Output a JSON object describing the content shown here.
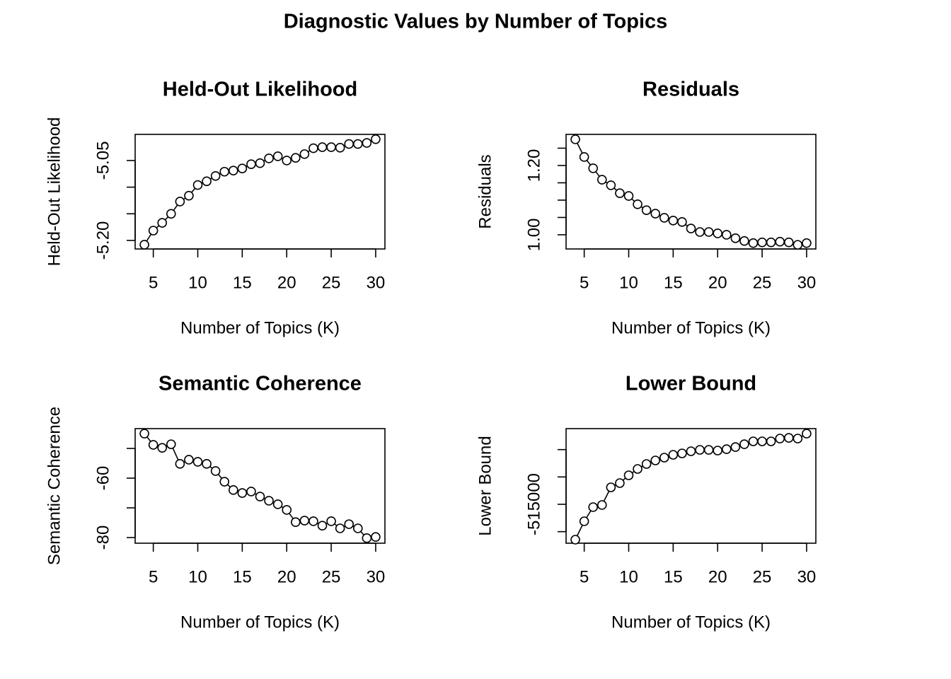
{
  "title": "Diagnostic Values by Number of Topics",
  "chart_data": [
    {
      "type": "line",
      "title": "Held-Out Likelihood",
      "xlabel": "Number of Topics (K)",
      "ylabel": "Held-Out Likelihood",
      "x": [
        4,
        5,
        6,
        7,
        8,
        9,
        10,
        11,
        12,
        13,
        14,
        15,
        16,
        17,
        18,
        19,
        20,
        21,
        22,
        23,
        24,
        25,
        26,
        27,
        28,
        29,
        30
      ],
      "values": [
        -5.208,
        -5.1815,
        -5.167,
        -5.15,
        -5.127,
        -5.116,
        -5.096,
        -5.089,
        -5.079,
        -5.071,
        -5.069,
        -5.065,
        -5.057,
        -5.055,
        -5.046,
        -5.042,
        -5.05,
        -5.045,
        -5.038,
        -5.027,
        -5.025,
        -5.025,
        -5.026,
        -5.019,
        -5.019,
        -5.017,
        -5.01
      ],
      "xlim": [
        2.96,
        31.04
      ],
      "ylim": [
        -5.216,
        -5.001
      ],
      "xticks": [
        5,
        10,
        15,
        20,
        25,
        30
      ],
      "yticks": [
        {
          "value": -5.2,
          "label": "-5.20"
        },
        {
          "value": -5.15,
          "label": null
        },
        {
          "value": -5.1,
          "label": null
        },
        -5.05
      ]
    },
    {
      "type": "line",
      "title": "Residuals",
      "xlabel": "Number of Topics (K)",
      "ylabel": "Residuals",
      "x": [
        4,
        5,
        6,
        7,
        8,
        9,
        10,
        11,
        12,
        13,
        14,
        15,
        16,
        17,
        18,
        19,
        20,
        21,
        22,
        23,
        24,
        25,
        26,
        27,
        28,
        29,
        30
      ],
      "values": [
        1.2755,
        1.2245,
        1.192,
        1.159,
        1.143,
        1.12,
        1.112,
        1.088,
        1.071,
        1.061,
        1.049,
        1.041,
        1.037,
        1.018,
        1.008,
        1.008,
        1.004,
        1.0,
        0.99,
        0.982,
        0.976,
        0.978,
        0.978,
        0.98,
        0.978,
        0.971,
        0.976
      ],
      "xlim": [
        2.96,
        31.04
      ],
      "ylim": [
        0.959,
        1.2898
      ],
      "xticks": [
        5,
        10,
        15,
        20,
        25,
        30
      ],
      "yticks": [
        {
          "value": 1,
          "label": "1.00"
        },
        {
          "value": 1.05,
          "label": null
        },
        {
          "value": 1.1,
          "label": null
        },
        {
          "value": 1.15,
          "label": null
        },
        {
          "value": 1.2,
          "label": "1.20"
        },
        {
          "value": 1.25,
          "label": null
        }
      ]
    },
    {
      "type": "line",
      "title": "Semantic Coherence",
      "xlabel": "Number of Topics (K)",
      "ylabel": "Semantic Coherence",
      "x": [
        4,
        5,
        6,
        7,
        8,
        9,
        10,
        11,
        12,
        13,
        14,
        15,
        16,
        17,
        18,
        19,
        20,
        21,
        22,
        23,
        24,
        25,
        26,
        27,
        28,
        29,
        30
      ],
      "values": [
        -45.0,
        -48.8,
        -49.8,
        -48.6,
        -55.2,
        -53.8,
        -54.5,
        -55.2,
        -57.6,
        -61.2,
        -64.0,
        -65.0,
        -64.5,
        -66.2,
        -67.6,
        -68.8,
        -70.7,
        -74.8,
        -74.3,
        -74.5,
        -76.0,
        -74.5,
        -76.9,
        -75.5,
        -76.9,
        -80.2,
        -79.8
      ],
      "xlim": [
        2.96,
        31.04
      ],
      "ylim": [
        -81.9,
        -43.33
      ],
      "xticks": [
        5,
        10,
        15,
        20,
        25,
        30
      ],
      "yticks": [
        -80,
        {
          "value": -70,
          "label": null
        },
        -60,
        {
          "value": -50,
          "label": null
        }
      ]
    },
    {
      "type": "line",
      "title": "Lower Bound",
      "xlabel": "Number of Topics (K)",
      "ylabel": "Lower Bound",
      "x": [
        4,
        5,
        6,
        7,
        8,
        9,
        10,
        11,
        12,
        13,
        14,
        15,
        16,
        17,
        18,
        19,
        20,
        21,
        22,
        23,
        24,
        25,
        26,
        27,
        28,
        29,
        30
      ],
      "values": [
        -521465,
        -518103,
        -515517,
        -515129,
        -511897,
        -511121,
        -509699,
        -508535,
        -507630,
        -506983,
        -506466,
        -505949,
        -505690,
        -505302,
        -505044,
        -505044,
        -505173,
        -504915,
        -504527,
        -504010,
        -503492,
        -503492,
        -503492,
        -502975,
        -502846,
        -502975,
        -502070
      ],
      "xlim": [
        2.96,
        31.04
      ],
      "ylim": [
        -522112,
        -501163
      ],
      "xticks": [
        5,
        10,
        15,
        20,
        25,
        30
      ],
      "yticks": [
        {
          "value": -520000,
          "label": null
        },
        -515000,
        {
          "value": -510000,
          "label": null
        },
        {
          "value": -505000,
          "label": null
        }
      ]
    }
  ]
}
